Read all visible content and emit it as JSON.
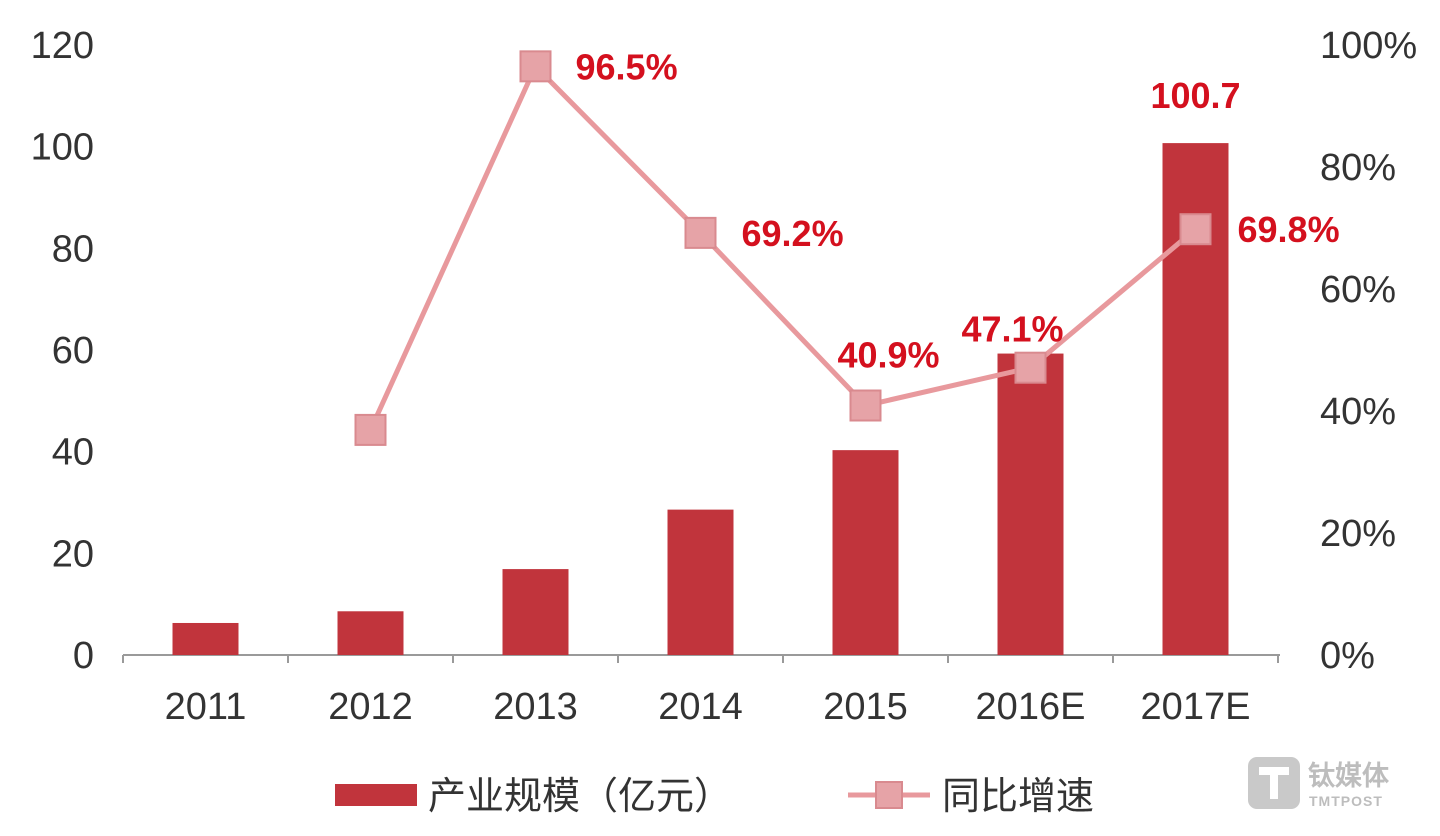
{
  "chart_data": {
    "type": "bar",
    "categories": [
      "2011",
      "2012",
      "2013",
      "2014",
      "2015",
      "2016E",
      "2017E"
    ],
    "series": [
      {
        "name": "产业规模（亿元）",
        "type": "bar",
        "axis": "left",
        "values": [
          6.3,
          8.6,
          16.9,
          28.6,
          40.3,
          59.3,
          100.7
        ],
        "data_labels": [
          null,
          null,
          null,
          null,
          null,
          null,
          "100.7"
        ],
        "color": "#c1343c"
      },
      {
        "name": "同比增速",
        "type": "line",
        "axis": "right",
        "values": [
          null,
          36.9,
          96.5,
          69.2,
          40.9,
          47.1,
          69.8
        ],
        "data_labels": [
          null,
          null,
          "96.5%",
          "69.2%",
          "40.9%",
          "47.1%",
          "69.8%"
        ],
        "color": "#e8999d",
        "marker_fill": "#e6a3a7",
        "marker_stroke": "#d98a8f"
      }
    ],
    "y_left": {
      "range": [
        0,
        120
      ],
      "tick_labels": [
        "0",
        "20",
        "40",
        "60",
        "80",
        "100",
        "120"
      ]
    },
    "y_right": {
      "range": [
        0,
        100
      ],
      "tick_labels": [
        "0%",
        "20%",
        "40%",
        "60%",
        "80%",
        "100%"
      ]
    },
    "grid": false,
    "legend": "bottom",
    "label_color": "#d4101e",
    "axis_color": "#9a9a9a"
  },
  "watermark": {
    "name": "钛媒体",
    "sub": "TMTPOST"
  }
}
